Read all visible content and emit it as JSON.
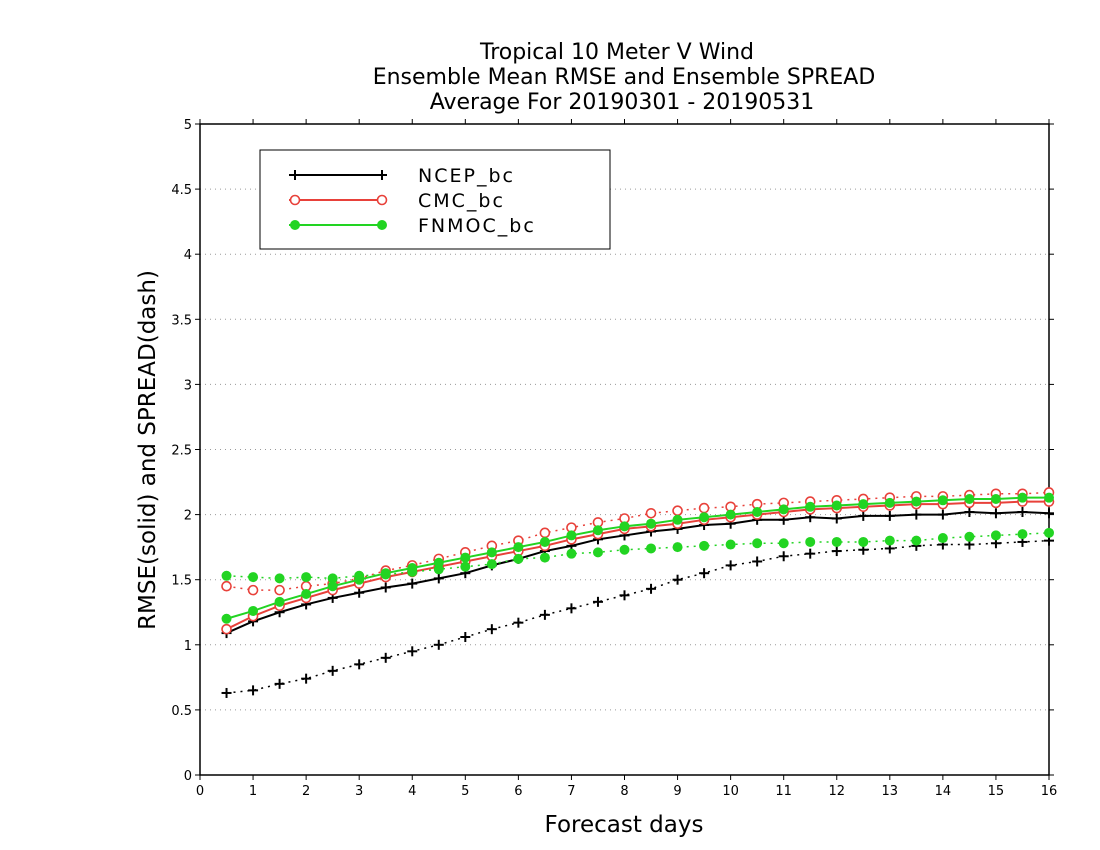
{
  "chart_data": {
    "type": "line",
    "title_lines": [
      "Tropical 10 Meter V Wind",
      "Ensemble Mean RMSE and Ensemble SPREAD",
      "Average For 20190301 - 20190531"
    ],
    "xlabel": "Forecast days",
    "ylabel": "RMSE(solid) and SPREAD(dash)",
    "xlim": [
      0,
      16
    ],
    "ylim": [
      0,
      5
    ],
    "x_ticks": [
      "0",
      "1",
      "2",
      "3",
      "4",
      "5",
      "6",
      "7",
      "8",
      "9",
      "10",
      "11",
      "12",
      "13",
      "14",
      "15",
      "16"
    ],
    "y_ticks": [
      "0",
      "0.5",
      "1",
      "1.5",
      "2",
      "2.5",
      "3",
      "3.5",
      "4",
      "4.5",
      "5"
    ],
    "grid": "horizontal dotted",
    "legend_position": "top-left",
    "x": [
      0.5,
      1,
      1.5,
      2,
      2.5,
      3,
      3.5,
      4,
      4.5,
      5,
      5.5,
      6,
      6.5,
      7,
      7.5,
      8,
      8.5,
      9,
      9.5,
      10,
      10.5,
      11,
      11.5,
      12,
      12.5,
      13,
      13.5,
      14,
      14.5,
      15,
      15.5,
      16
    ],
    "series": [
      {
        "name": "NCEP_bc",
        "color": "#000000",
        "marker": "plus",
        "rmse": [
          1.09,
          1.18,
          1.25,
          1.31,
          1.36,
          1.4,
          1.44,
          1.47,
          1.51,
          1.55,
          1.61,
          1.66,
          1.72,
          1.76,
          1.81,
          1.84,
          1.87,
          1.89,
          1.92,
          1.93,
          1.96,
          1.96,
          1.98,
          1.97,
          1.99,
          1.99,
          2.0,
          2.0,
          2.02,
          2.01,
          2.02,
          2.01
        ],
        "spread": [
          0.63,
          0.65,
          0.7,
          0.74,
          0.8,
          0.85,
          0.9,
          0.95,
          1.0,
          1.06,
          1.12,
          1.17,
          1.23,
          1.28,
          1.33,
          1.38,
          1.43,
          1.5,
          1.55,
          1.61,
          1.64,
          1.68,
          1.7,
          1.72,
          1.73,
          1.74,
          1.76,
          1.77,
          1.77,
          1.78,
          1.79,
          1.8
        ]
      },
      {
        "name": "CMC_bc",
        "color": "#e8413a",
        "marker": "open-circle",
        "rmse": [
          1.12,
          1.22,
          1.3,
          1.36,
          1.42,
          1.47,
          1.52,
          1.56,
          1.6,
          1.64,
          1.68,
          1.72,
          1.76,
          1.81,
          1.85,
          1.89,
          1.91,
          1.93,
          1.96,
          1.98,
          2.0,
          2.02,
          2.04,
          2.05,
          2.06,
          2.07,
          2.08,
          2.08,
          2.09,
          2.09,
          2.1,
          2.1
        ],
        "spread": [
          1.45,
          1.42,
          1.42,
          1.45,
          1.47,
          1.51,
          1.57,
          1.61,
          1.66,
          1.71,
          1.76,
          1.8,
          1.86,
          1.9,
          1.94,
          1.97,
          2.01,
          2.03,
          2.05,
          2.06,
          2.08,
          2.09,
          2.1,
          2.11,
          2.12,
          2.13,
          2.14,
          2.14,
          2.15,
          2.16,
          2.16,
          2.17
        ]
      },
      {
        "name": "FNMOC_bc",
        "color": "#22d422",
        "marker": "filled-circle",
        "rmse": [
          1.2,
          1.26,
          1.33,
          1.39,
          1.45,
          1.5,
          1.55,
          1.59,
          1.63,
          1.67,
          1.71,
          1.75,
          1.79,
          1.84,
          1.88,
          1.91,
          1.93,
          1.96,
          1.98,
          2.0,
          2.02,
          2.04,
          2.06,
          2.07,
          2.08,
          2.09,
          2.1,
          2.11,
          2.12,
          2.12,
          2.13,
          2.13
        ],
        "spread": [
          1.53,
          1.52,
          1.51,
          1.52,
          1.51,
          1.53,
          1.54,
          1.56,
          1.58,
          1.6,
          1.62,
          1.66,
          1.67,
          1.7,
          1.71,
          1.73,
          1.74,
          1.75,
          1.76,
          1.77,
          1.78,
          1.78,
          1.79,
          1.79,
          1.79,
          1.8,
          1.8,
          1.82,
          1.83,
          1.84,
          1.85,
          1.86
        ]
      }
    ]
  }
}
